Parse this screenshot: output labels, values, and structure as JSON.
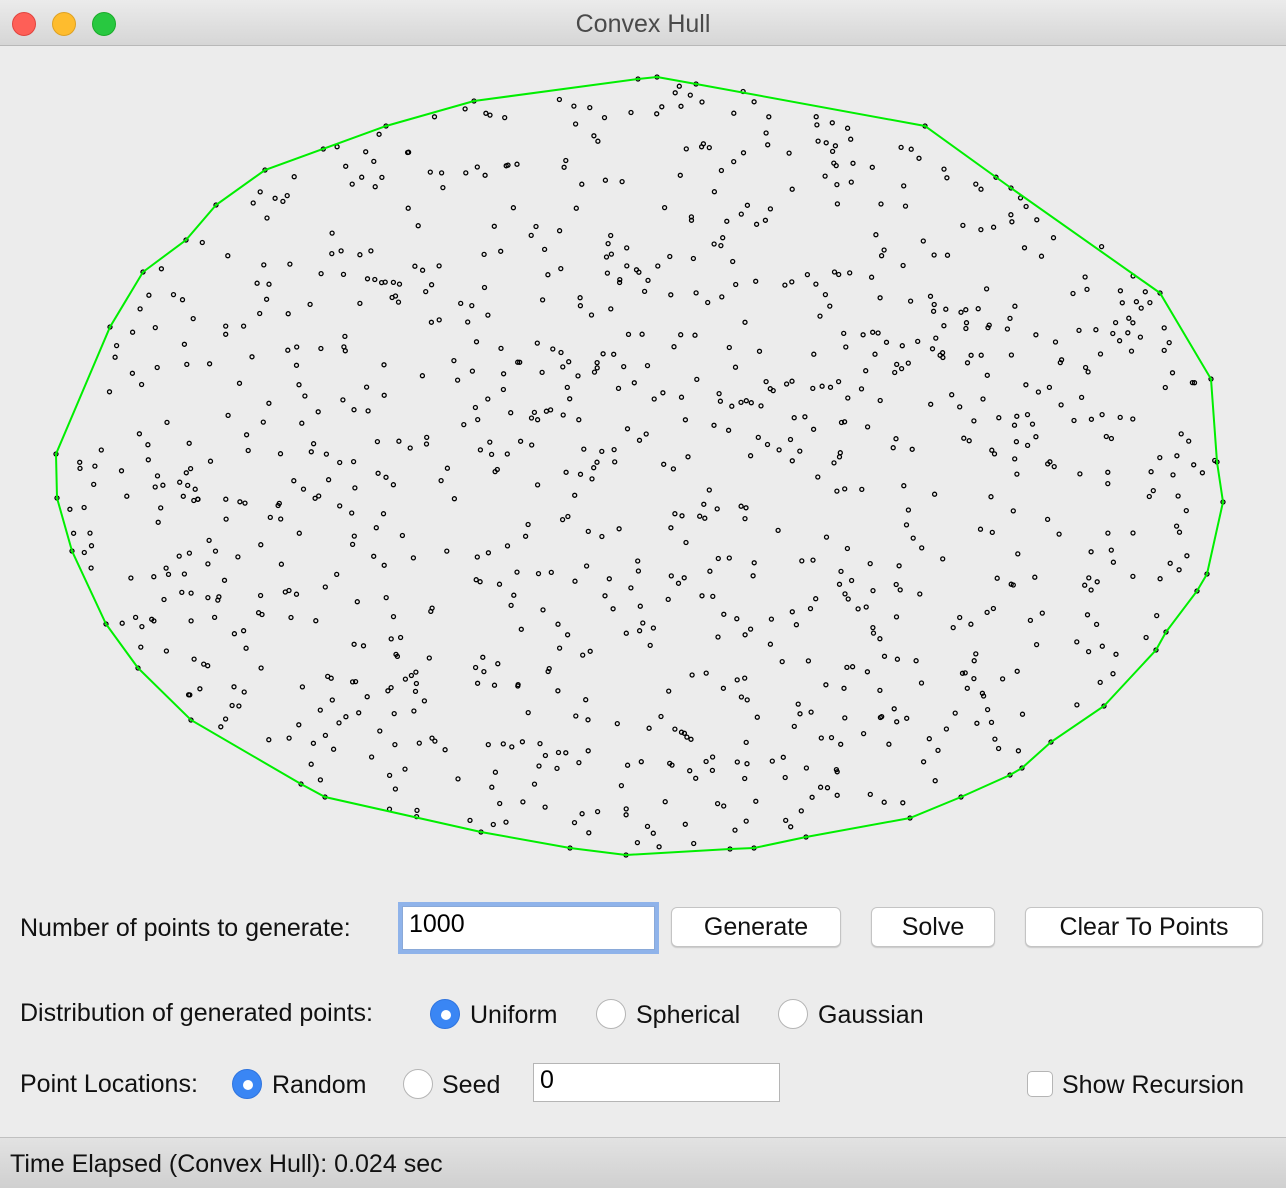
{
  "window": {
    "title": "Convex Hull"
  },
  "controls": {
    "num_points_label": "Number of points to generate:",
    "num_points_value": "1000",
    "generate_label": "Generate",
    "solve_label": "Solve",
    "clear_label": "Clear To Points",
    "distribution_label": "Distribution of generated points:",
    "distribution_options": [
      "Uniform",
      "Spherical",
      "Gaussian"
    ],
    "distribution_selected": "Uniform",
    "locations_label": "Point Locations:",
    "location_options": [
      "Random",
      "Seed"
    ],
    "location_selected": "Random",
    "seed_value": "0",
    "show_recursion_label": "Show Recursion",
    "show_recursion_checked": false
  },
  "status": {
    "text": "Time Elapsed (Convex Hull): 0.024 sec"
  },
  "colors": {
    "hull": "#00ee00",
    "points": "#000000",
    "focus": "#8fb3ea",
    "radio_selected": "#3a86f4"
  }
}
